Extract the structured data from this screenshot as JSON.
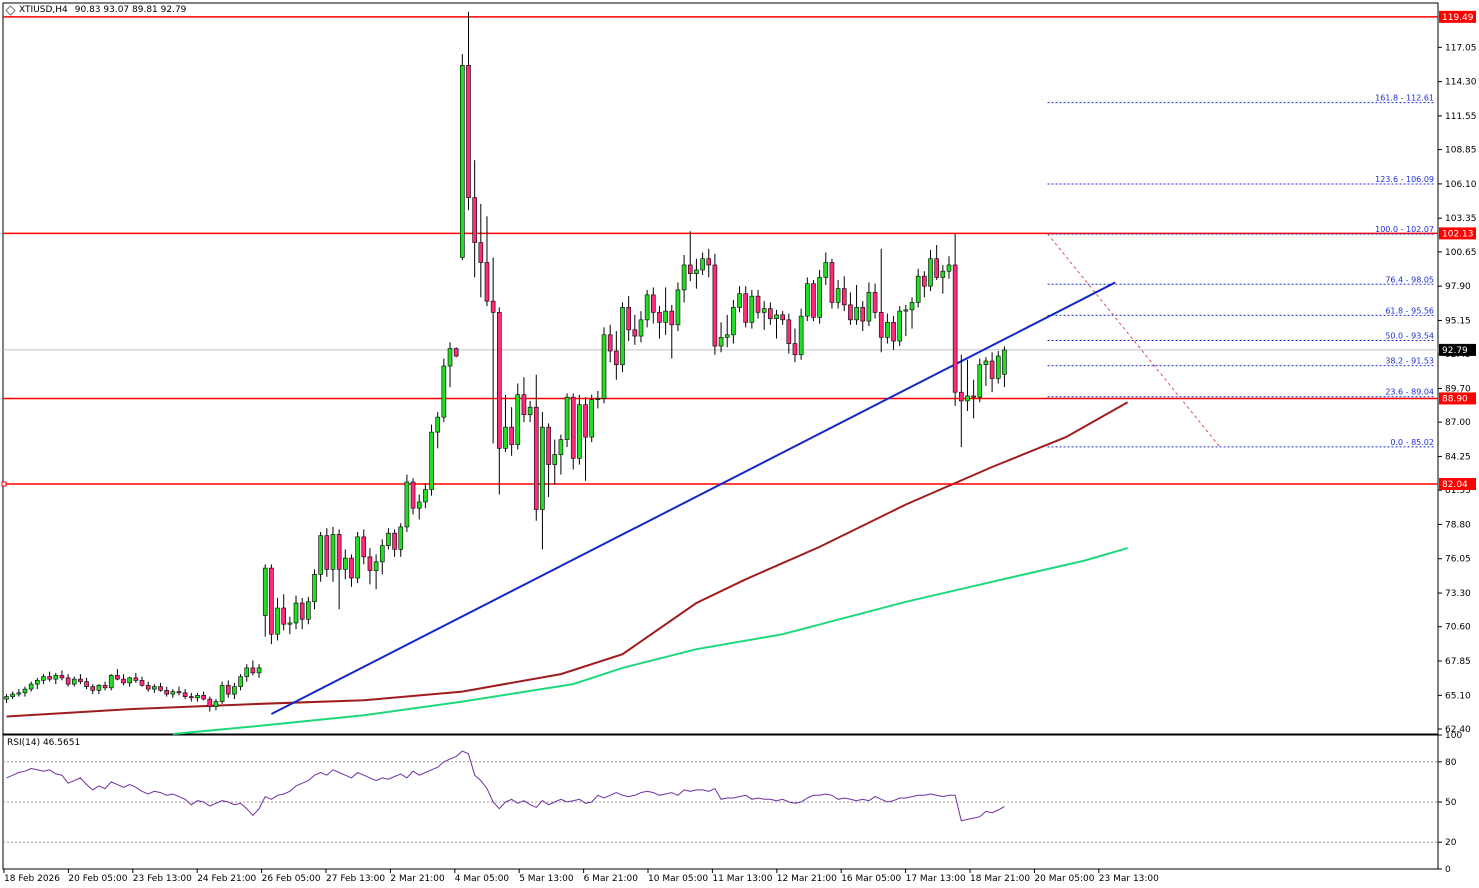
{
  "header": {
    "symbol": "XTIUSD,H4",
    "ohlc": "90.83 93.07 89.81 92.79",
    "icon": "chart-icon"
  },
  "colors": {
    "bull": "#22dd22",
    "bear": "#ff2a7a",
    "candle_border": "#000000",
    "resistance": "#ff0000",
    "trendline": "#1428c8",
    "ma_slow": "#a01c1c",
    "ma_fast": "#1ed97c",
    "fib": "#1d2fd6",
    "fib_diag": "#e05050",
    "rsi": "#7030a0",
    "current_price": "#000000"
  },
  "chart_data": {
    "type": "candlestick",
    "symbol": "XTIUSD",
    "timeframe": "H4",
    "last_price": 92.79,
    "y_ticks": [
      "117.05",
      "114.30",
      "111.55",
      "108.85",
      "106.10",
      "103.35",
      "100.65",
      "97.90",
      "95.15",
      "92.45",
      "89.70",
      "87.00",
      "84.25",
      "81.55",
      "78.80",
      "76.05",
      "73.30",
      "70.60",
      "67.85",
      "65.10",
      "62.40"
    ],
    "ylim": [
      62.0,
      120.6
    ],
    "x_ticks": [
      "18 Feb 2026",
      "20 Feb 05:00",
      "23 Feb 13:00",
      "24 Feb 21:00",
      "26 Feb 05:00",
      "27 Feb 13:00",
      "2 Mar 21:00",
      "4 Mar 05:00",
      "5 Mar 13:00",
      "6 Mar 21:00",
      "10 Mar 05:00",
      "11 Mar 13:00",
      "12 Mar 21:00",
      "16 Mar 05:00",
      "17 Mar 13:00",
      "18 Mar 21:00",
      "20 Mar 05:00",
      "23 Mar 13:00"
    ],
    "price_tags": [
      {
        "label": "119.49",
        "value": 119.49,
        "kind": "resistance"
      },
      {
        "label": "102.13",
        "value": 102.13,
        "kind": "resistance"
      },
      {
        "label": "92.79",
        "value": 92.79,
        "kind": "current"
      },
      {
        "label": "88.90",
        "value": 88.9,
        "kind": "resistance"
      },
      {
        "label": "82.04",
        "value": 82.04,
        "kind": "resistance"
      }
    ],
    "horizontal_levels": [
      119.49,
      102.13,
      88.9,
      82.04
    ],
    "fib_levels": [
      {
        "label": "161.8 - 112.61",
        "value": 112.61
      },
      {
        "label": "123.6 - 106.09",
        "value": 106.09
      },
      {
        "label": "100.0 - 102.07",
        "value": 102.07
      },
      {
        "label": "76.4 - 98.05",
        "value": 98.05
      },
      {
        "label": "61.8 - 95.56",
        "value": 95.56
      },
      {
        "label": "50.0 - 93.54",
        "value": 93.54
      },
      {
        "label": "38.2 - 91.53",
        "value": 91.53
      },
      {
        "label": "23.6 - 89.04",
        "value": 89.04
      },
      {
        "label": "0.0 - 85.02",
        "value": 85.02
      }
    ],
    "trendline": {
      "from": {
        "bar": 43,
        "price": 63.6
      },
      "to": {
        "bar": 180,
        "price": 98.2
      }
    },
    "fib_diagonal": {
      "from": {
        "bar": 169,
        "price": 102.1
      },
      "to": {
        "bar": 197,
        "price": 85.0
      }
    },
    "candles": [
      [
        64.8,
        65.2,
        64.5,
        65.0
      ],
      [
        65.0,
        65.4,
        64.8,
        65.2
      ],
      [
        65.2,
        65.6,
        65.0,
        65.3
      ],
      [
        65.3,
        65.8,
        65.0,
        65.6
      ],
      [
        65.6,
        66.2,
        65.4,
        66.0
      ],
      [
        66.0,
        66.5,
        65.6,
        66.3
      ],
      [
        66.3,
        66.8,
        66.0,
        66.6
      ],
      [
        66.6,
        67.0,
        66.2,
        66.4
      ],
      [
        66.4,
        66.9,
        66.0,
        66.7
      ],
      [
        66.7,
        67.1,
        66.3,
        66.5
      ],
      [
        66.5,
        66.8,
        65.8,
        66.0
      ],
      [
        66.0,
        66.6,
        65.8,
        66.4
      ],
      [
        66.4,
        66.8,
        66.0,
        66.2
      ],
      [
        66.2,
        66.5,
        65.6,
        65.8
      ],
      [
        65.8,
        66.0,
        65.2,
        65.5
      ],
      [
        65.5,
        66.0,
        65.2,
        65.9
      ],
      [
        65.9,
        66.2,
        65.5,
        65.7
      ],
      [
        65.7,
        66.8,
        65.5,
        66.7
      ],
      [
        66.7,
        67.2,
        66.3,
        66.4
      ],
      [
        66.4,
        66.8,
        65.9,
        66.1
      ],
      [
        66.1,
        66.6,
        65.8,
        66.5
      ],
      [
        66.5,
        66.9,
        66.1,
        66.3
      ],
      [
        66.3,
        66.6,
        65.8,
        65.9
      ],
      [
        65.9,
        66.2,
        65.4,
        65.6
      ],
      [
        65.6,
        66.0,
        65.3,
        65.8
      ],
      [
        65.8,
        66.1,
        65.4,
        65.5
      ],
      [
        65.5,
        65.8,
        65.0,
        65.2
      ],
      [
        65.2,
        65.6,
        64.9,
        65.4
      ],
      [
        65.4,
        65.8,
        65.1,
        65.3
      ],
      [
        65.3,
        65.6,
        64.8,
        65.0
      ],
      [
        65.0,
        65.3,
        64.6,
        64.9
      ],
      [
        64.9,
        65.3,
        64.6,
        65.1
      ],
      [
        65.1,
        65.4,
        64.7,
        64.8
      ],
      [
        64.8,
        65.0,
        63.8,
        64.2
      ],
      [
        64.2,
        64.8,
        63.9,
        64.6
      ],
      [
        64.6,
        66.2,
        64.4,
        65.9
      ],
      [
        65.9,
        66.3,
        64.9,
        65.2
      ],
      [
        65.2,
        66.1,
        64.8,
        65.8
      ],
      [
        65.8,
        66.8,
        65.5,
        66.6
      ],
      [
        66.6,
        67.6,
        66.2,
        67.3
      ],
      [
        67.3,
        67.9,
        66.7,
        66.9
      ],
      [
        66.9,
        67.6,
        66.5,
        67.3
      ],
      [
        71.5,
        75.6,
        69.8,
        75.3
      ],
      [
        75.3,
        75.6,
        69.2,
        70.0
      ],
      [
        70.0,
        72.9,
        69.5,
        72.1
      ],
      [
        72.1,
        73.2,
        70.3,
        70.8
      ],
      [
        70.8,
        71.4,
        70.0,
        70.9
      ],
      [
        70.9,
        73.1,
        70.4,
        72.5
      ],
      [
        72.5,
        72.9,
        70.4,
        71.2
      ],
      [
        71.2,
        73.0,
        70.8,
        72.6
      ],
      [
        72.6,
        75.2,
        72.0,
        74.8
      ],
      [
        74.8,
        78.2,
        74.2,
        77.9
      ],
      [
        77.9,
        78.5,
        74.6,
        75.2
      ],
      [
        75.2,
        78.6,
        74.2,
        78.0
      ],
      [
        78.0,
        78.4,
        72.0,
        75.2
      ],
      [
        75.2,
        76.8,
        74.4,
        76.1
      ],
      [
        76.1,
        76.4,
        73.8,
        74.5
      ],
      [
        74.5,
        78.2,
        74.1,
        77.8
      ],
      [
        77.8,
        78.4,
        75.6,
        76.2
      ],
      [
        76.2,
        76.9,
        74.0,
        75.1
      ],
      [
        75.1,
        76.4,
        73.6,
        75.8
      ],
      [
        75.8,
        77.6,
        74.8,
        77.1
      ],
      [
        77.1,
        78.5,
        76.8,
        78.1
      ],
      [
        78.1,
        78.4,
        76.2,
        76.8
      ],
      [
        76.8,
        78.9,
        76.2,
        78.6
      ],
      [
        78.6,
        82.8,
        78.2,
        82.2
      ],
      [
        82.2,
        82.5,
        79.6,
        80.1
      ],
      [
        80.1,
        81.2,
        79.2,
        80.6
      ],
      [
        80.6,
        82.1,
        80.1,
        81.6
      ],
      [
        81.6,
        86.8,
        81.1,
        86.2
      ],
      [
        86.2,
        87.8,
        84.9,
        87.4
      ],
      [
        87.4,
        92.1,
        87.0,
        91.5
      ],
      [
        91.5,
        93.4,
        89.8,
        92.9
      ],
      [
        92.9,
        93.0,
        92.2,
        92.3
      ],
      [
        100.2,
        116.5,
        100.0,
        115.6
      ],
      [
        115.6,
        119.9,
        104.0,
        105.0
      ],
      [
        105.0,
        108.0,
        98.6,
        101.4
      ],
      [
        101.4,
        104.5,
        97.0,
        99.8
      ],
      [
        99.8,
        103.5,
        96.3,
        96.7
      ],
      [
        96.7,
        100.2,
        85.3,
        95.8
      ],
      [
        95.8,
        96.2,
        81.2,
        84.9
      ],
      [
        84.9,
        89.2,
        84.6,
        86.6
      ],
      [
        86.6,
        88.2,
        84.3,
        85.2
      ],
      [
        85.2,
        90.1,
        84.8,
        89.2
      ],
      [
        89.2,
        90.6,
        87.0,
        87.6
      ],
      [
        87.6,
        88.7,
        87.0,
        88.2
      ],
      [
        88.2,
        90.8,
        79.1,
        80.0
      ],
      [
        80.0,
        87.8,
        76.8,
        86.6
      ],
      [
        86.6,
        86.9,
        81.0,
        83.6
      ],
      [
        83.6,
        85.6,
        82.0,
        84.4
      ],
      [
        84.4,
        86.0,
        82.8,
        85.6
      ],
      [
        85.6,
        89.3,
        85.0,
        89.0
      ],
      [
        89.0,
        89.3,
        83.2,
        84.1
      ],
      [
        84.1,
        89.2,
        83.6,
        88.4
      ],
      [
        88.4,
        89.0,
        82.3,
        85.8
      ],
      [
        85.8,
        89.2,
        85.4,
        88.8
      ],
      [
        88.8,
        89.5,
        88.1,
        88.9
      ],
      [
        88.9,
        94.6,
        88.5,
        94.0
      ],
      [
        94.0,
        94.8,
        91.8,
        92.7
      ],
      [
        92.7,
        94.3,
        90.4,
        91.6
      ],
      [
        91.6,
        96.6,
        91.0,
        96.2
      ],
      [
        96.2,
        97.1,
        93.5,
        94.4
      ],
      [
        94.4,
        95.6,
        93.2,
        93.9
      ],
      [
        93.9,
        95.9,
        93.4,
        95.2
      ],
      [
        95.2,
        97.6,
        94.6,
        97.2
      ],
      [
        97.2,
        97.8,
        94.9,
        95.8
      ],
      [
        95.8,
        96.3,
        93.7,
        95.0
      ],
      [
        95.0,
        97.8,
        94.0,
        95.9
      ],
      [
        95.9,
        96.4,
        92.1,
        94.8
      ],
      [
        94.8,
        98.2,
        94.3,
        97.6
      ],
      [
        97.6,
        100.4,
        96.6,
        99.6
      ],
      [
        99.6,
        102.3,
        98.3,
        98.9
      ],
      [
        98.9,
        100.1,
        97.7,
        99.2
      ],
      [
        99.2,
        100.6,
        98.8,
        100.1
      ],
      [
        100.1,
        100.9,
        98.6,
        99.6
      ],
      [
        99.6,
        100.5,
        92.4,
        93.1
      ],
      [
        93.1,
        95.0,
        92.6,
        93.8
      ],
      [
        93.8,
        95.6,
        93.0,
        94.0
      ],
      [
        94.0,
        96.8,
        93.3,
        96.2
      ],
      [
        96.2,
        97.9,
        95.8,
        97.3
      ],
      [
        97.3,
        97.9,
        94.6,
        95.0
      ],
      [
        95.0,
        97.6,
        94.5,
        97.1
      ],
      [
        97.1,
        97.6,
        95.3,
        95.8
      ],
      [
        95.8,
        96.7,
        94.4,
        96.1
      ],
      [
        96.1,
        96.6,
        94.8,
        95.3
      ],
      [
        95.3,
        96.0,
        93.7,
        95.6
      ],
      [
        95.6,
        95.9,
        94.8,
        95.2
      ],
      [
        95.2,
        95.7,
        92.5,
        93.3
      ],
      [
        93.3,
        94.5,
        91.8,
        92.4
      ],
      [
        92.4,
        96.1,
        92.0,
        95.5
      ],
      [
        95.5,
        98.6,
        95.1,
        98.1
      ],
      [
        98.1,
        98.4,
        95.1,
        95.4
      ],
      [
        95.4,
        99.2,
        94.9,
        98.6
      ],
      [
        98.6,
        100.6,
        98.0,
        99.8
      ],
      [
        99.8,
        100.1,
        96.1,
        96.6
      ],
      [
        96.6,
        98.4,
        96.1,
        97.7
      ],
      [
        97.7,
        98.7,
        95.9,
        96.4
      ],
      [
        96.4,
        97.4,
        94.8,
        95.2
      ],
      [
        95.2,
        98.0,
        94.8,
        96.2
      ],
      [
        96.2,
        96.7,
        94.3,
        95.1
      ],
      [
        95.1,
        98.2,
        94.7,
        97.4
      ],
      [
        97.4,
        98.1,
        95.3,
        95.8
      ],
      [
        95.8,
        100.9,
        92.6,
        93.8
      ],
      [
        93.8,
        95.7,
        93.3,
        95.0
      ],
      [
        95.0,
        95.5,
        92.8,
        93.5
      ],
      [
        93.5,
        96.3,
        93.1,
        95.9
      ],
      [
        95.9,
        96.4,
        93.9,
        96.0
      ],
      [
        96.0,
        97.0,
        94.5,
        96.6
      ],
      [
        96.6,
        99.3,
        96.2,
        98.7
      ],
      [
        98.7,
        99.1,
        97.0,
        97.9
      ],
      [
        97.9,
        100.8,
        97.5,
        100.1
      ],
      [
        100.1,
        101.2,
        98.4,
        98.6
      ],
      [
        98.6,
        99.6,
        97.3,
        99.1
      ],
      [
        99.1,
        100.3,
        98.5,
        99.6
      ],
      [
        99.6,
        102.1,
        88.3,
        89.4
      ],
      [
        89.4,
        92.4,
        85.0,
        88.7
      ],
      [
        88.7,
        92.0,
        87.9,
        89.1
      ],
      [
        89.1,
        90.4,
        87.3,
        89.0
      ],
      [
        89.0,
        92.1,
        88.6,
        91.6
      ],
      [
        91.6,
        92.2,
        89.9,
        91.9
      ],
      [
        91.9,
        92.6,
        89.4,
        90.5
      ],
      [
        90.5,
        92.7,
        90.1,
        92.3
      ],
      [
        90.83,
        93.07,
        89.81,
        92.79
      ]
    ],
    "ma_slow": {
      "points": [
        [
          0,
          63.4
        ],
        [
          20,
          64.0
        ],
        [
          40,
          64.4
        ],
        [
          58,
          64.7
        ],
        [
          74,
          65.4
        ],
        [
          90,
          66.8
        ],
        [
          100,
          68.4
        ],
        [
          112,
          72.5
        ],
        [
          120,
          74.4
        ],
        [
          132,
          77.0
        ],
        [
          146,
          80.4
        ],
        [
          160,
          83.4
        ],
        [
          172,
          85.8
        ],
        [
          182,
          88.6
        ]
      ]
    },
    "ma_fast": {
      "points": [
        [
          27,
          62.0
        ],
        [
          40,
          62.6
        ],
        [
          58,
          63.5
        ],
        [
          74,
          64.6
        ],
        [
          92,
          66.0
        ],
        [
          100,
          67.3
        ],
        [
          112,
          68.8
        ],
        [
          126,
          70.0
        ],
        [
          146,
          72.6
        ],
        [
          160,
          74.2
        ],
        [
          175,
          75.9
        ],
        [
          182,
          76.9
        ]
      ]
    },
    "rsi": {
      "label": "RSI(14) 46.5651",
      "ticks": [
        "100",
        "80",
        "50",
        "20",
        "0"
      ],
      "ylim": [
        0,
        100
      ],
      "levels": [
        80,
        50,
        20
      ],
      "values": [
        68,
        70,
        72,
        73,
        75,
        74,
        73,
        74,
        71,
        70,
        64,
        66,
        68,
        63,
        59,
        62,
        60,
        65,
        63,
        61,
        63,
        61,
        58,
        56,
        58,
        57,
        55,
        56,
        54,
        52,
        48,
        51,
        50,
        47,
        49,
        51,
        50,
        48,
        49,
        45,
        40,
        45,
        54,
        52,
        55,
        56,
        58,
        62,
        64,
        66,
        70,
        72,
        70,
        74,
        72,
        70,
        68,
        72,
        70,
        68,
        66,
        68,
        67,
        69,
        71,
        68,
        73,
        70,
        72,
        74,
        76,
        80,
        82,
        84,
        88,
        86,
        70,
        66,
        60,
        50,
        45,
        50,
        52,
        49,
        51,
        48,
        46,
        51,
        48,
        50,
        52,
        50,
        51,
        52,
        49,
        50,
        55,
        53,
        55,
        57,
        55,
        54,
        55,
        57,
        58,
        57,
        55,
        56,
        57,
        55,
        59,
        58,
        59,
        59,
        58,
        60,
        52,
        53,
        53,
        54,
        55,
        52,
        53,
        52,
        52,
        51,
        52,
        50,
        49,
        50,
        53,
        55,
        55,
        56,
        55,
        52,
        53,
        52,
        51,
        52,
        51,
        54,
        52,
        50,
        51,
        53,
        53,
        54,
        55,
        55,
        56,
        55,
        54,
        55,
        55,
        36,
        37,
        38,
        39,
        43,
        42,
        44,
        46.57
      ]
    }
  }
}
